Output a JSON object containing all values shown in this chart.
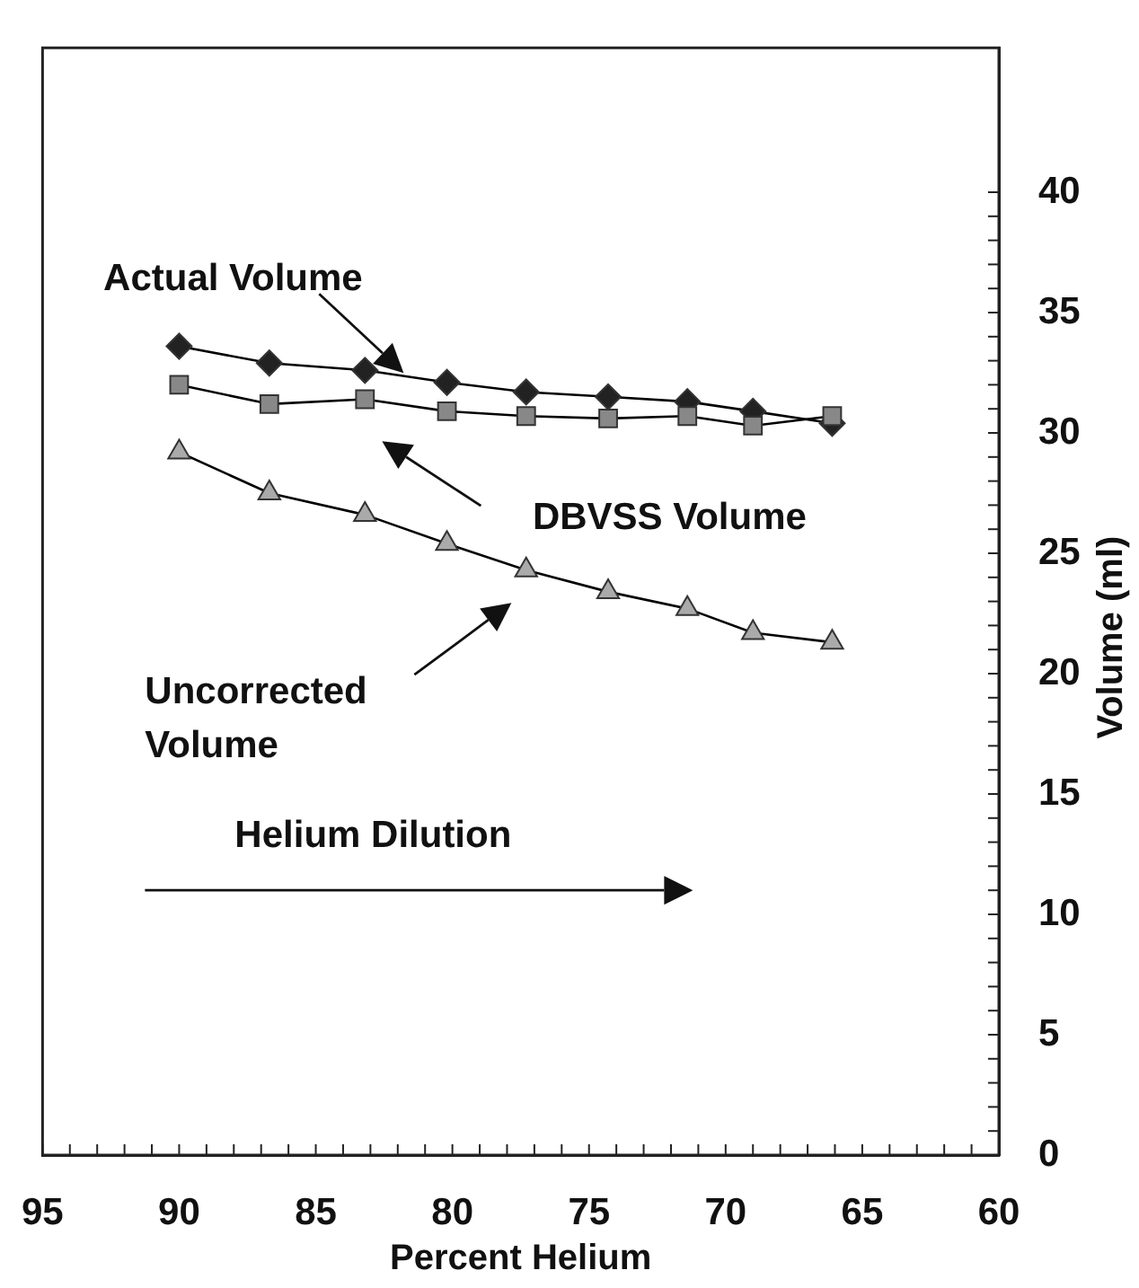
{
  "chart_data": {
    "type": "line",
    "xlabel": "Percent Helium",
    "ylabel": "Volume (ml)",
    "x": [
      90,
      86.7,
      83.2,
      80.2,
      77.3,
      74.3,
      71.4,
      69,
      66.1
    ],
    "series": [
      {
        "color": "#222222",
        "marker": "diamond",
        "values": [
          33.6,
          32.9,
          32.6,
          32.1,
          31.7,
          31.5,
          31.3,
          30.9,
          30.4
        ]
      },
      {
        "color": "#888888",
        "marker": "square",
        "values": [
          32.0,
          31.2,
          31.4,
          30.9,
          30.7,
          30.6,
          30.7,
          30.3,
          30.7
        ]
      },
      {
        "color": "#aaaaaa",
        "marker": "triangle",
        "values": [
          29.2,
          27.5,
          26.6,
          25.4,
          24.3,
          23.4,
          22.7,
          21.7,
          21.3
        ]
      }
    ],
    "xlim": [
      95,
      60
    ],
    "xticks": [
      95,
      {
        "value": 94,
        "label": null
      },
      {
        "value": 93,
        "label": null
      },
      {
        "value": 92,
        "label": null
      },
      {
        "value": 91,
        "label": null
      },
      90,
      {
        "value": 89,
        "label": null
      },
      {
        "value": 88,
        "label": null
      },
      {
        "value": 87,
        "label": null
      },
      {
        "value": 86,
        "label": null
      },
      85,
      {
        "value": 84,
        "label": null
      },
      {
        "value": 83,
        "label": null
      },
      {
        "value": 82,
        "label": null
      },
      {
        "value": 81,
        "label": null
      },
      80,
      {
        "value": 79,
        "label": null
      },
      {
        "value": 78,
        "label": null
      },
      {
        "value": 77,
        "label": null
      },
      {
        "value": 76,
        "label": null
      },
      75,
      {
        "value": 74,
        "label": null
      },
      {
        "value": 73,
        "label": null
      },
      {
        "value": 72,
        "label": null
      },
      {
        "value": 71,
        "label": null
      },
      70,
      {
        "value": 69,
        "label": null
      },
      {
        "value": 68,
        "label": null
      },
      {
        "value": 67,
        "label": null
      },
      {
        "value": 66,
        "label": null
      },
      65,
      {
        "value": 64,
        "label": null
      },
      {
        "value": 63,
        "label": null
      },
      {
        "value": 62,
        "label": null
      },
      {
        "value": 61,
        "label": null
      },
      60
    ],
    "ylim": [
      0,
      46
    ],
    "yticks": [
      0,
      {
        "value": 1,
        "label": null
      },
      {
        "value": 2,
        "label": null
      },
      {
        "value": 3,
        "label": null
      },
      {
        "value": 4,
        "label": null
      },
      5,
      {
        "value": 6,
        "label": null
      },
      {
        "value": 7,
        "label": null
      },
      {
        "value": 8,
        "label": null
      },
      {
        "value": 9,
        "label": null
      },
      10,
      {
        "value": 11,
        "label": null
      },
      {
        "value": 12,
        "label": null
      },
      {
        "value": 13,
        "label": null
      },
      {
        "value": 14,
        "label": null
      },
      15,
      {
        "value": 16,
        "label": null
      },
      {
        "value": 17,
        "label": null
      },
      {
        "value": 18,
        "label": null
      },
      {
        "value": 19,
        "label": null
      },
      20,
      {
        "value": 21,
        "label": null
      },
      {
        "value": 22,
        "label": null
      },
      {
        "value": 23,
        "label": null
      },
      {
        "value": 24,
        "label": null
      },
      25,
      {
        "value": 26,
        "label": null
      },
      {
        "value": 27,
        "label": null
      },
      {
        "value": 28,
        "label": null
      },
      {
        "value": 29,
        "label": null
      },
      30,
      {
        "value": 31,
        "label": null
      },
      {
        "value": 32,
        "label": null
      },
      {
        "value": 33,
        "label": null
      },
      {
        "value": 34,
        "label": null
      },
      35,
      {
        "value": 36,
        "label": null
      },
      {
        "value": 37,
        "label": null
      },
      {
        "value": 38,
        "label": null
      },
      {
        "value": 39,
        "label": null
      },
      40
    ],
    "annotations": [
      "Actual Volume",
      "DBVSS Volume",
      "Uncorrected\nVolume",
      "Helium Dilution"
    ],
    "legend": false
  }
}
